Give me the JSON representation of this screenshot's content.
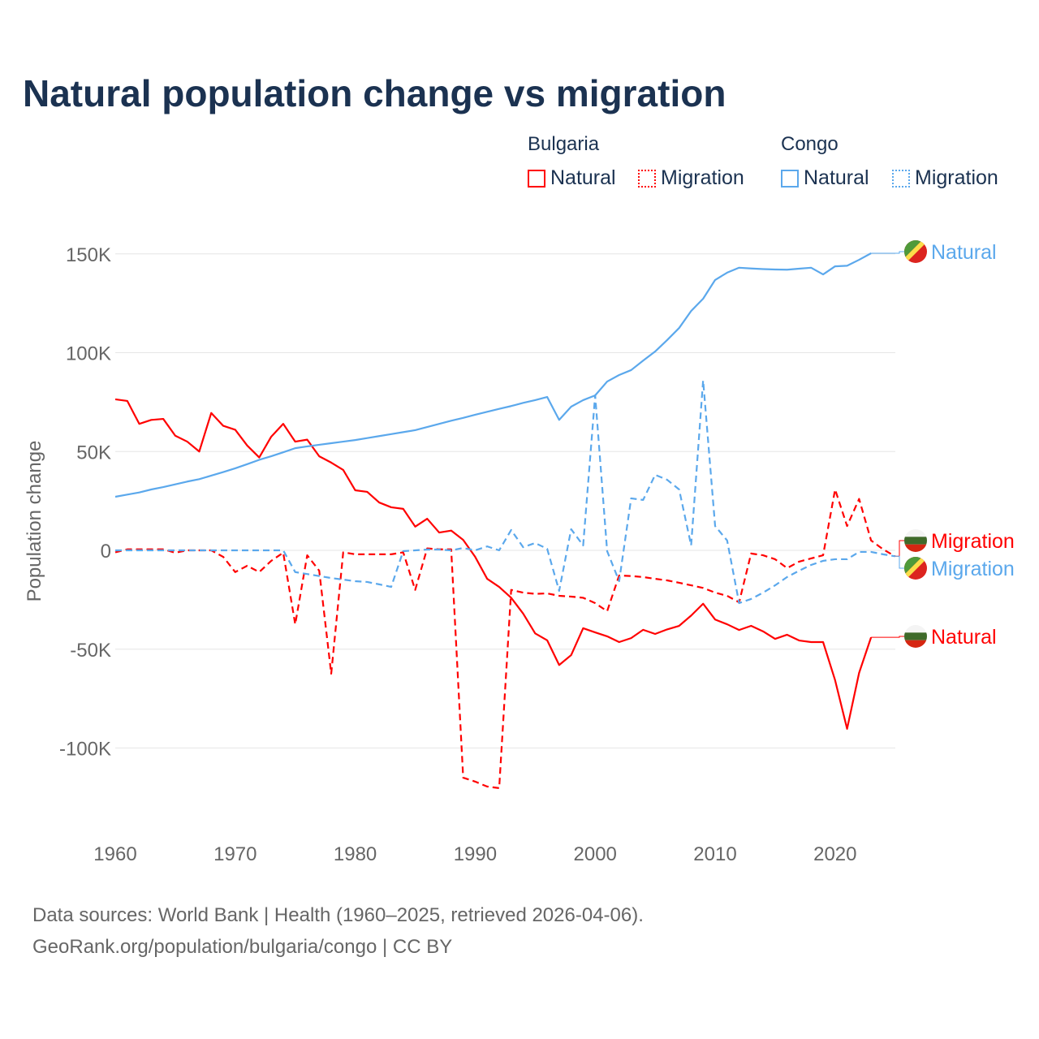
{
  "title": "Natural population change vs migration",
  "legend": {
    "groups": [
      {
        "name": "Bulgaria",
        "color": "#ff0000",
        "items": [
          "Natural",
          "Migration"
        ]
      },
      {
        "name": "Congo",
        "color": "#5ba8ec",
        "items": [
          "Natural",
          "Migration"
        ]
      }
    ]
  },
  "footer": {
    "line1": "Data sources: World Bank | Health (1960–2025, retrieved 2026-04-06).",
    "line2": "GeoRank.org/population/bulgaria/congo | CC BY"
  },
  "chart_data": {
    "type": "line",
    "title": "Natural population change vs migration",
    "xlabel": "",
    "ylabel": "Population change",
    "xlim": [
      1960,
      2025
    ],
    "ylim": [
      -130000,
      165000
    ],
    "x_ticks": [
      1960,
      1970,
      1980,
      1990,
      2000,
      2010,
      2020
    ],
    "x_tick_labels": [
      "1960",
      "1970",
      "1980",
      "1990",
      "2000",
      "2010",
      "2020"
    ],
    "y_ticks": [
      -100000,
      -50000,
      0,
      50000,
      100000,
      150000
    ],
    "y_tick_labels": [
      "-100K",
      "-50K",
      "0",
      "50K",
      "100K",
      "150K"
    ],
    "grid": true,
    "legend_placement": "top-right",
    "series": [
      {
        "name": "Bulgaria Natural",
        "country": "Bulgaria",
        "kind": "Natural",
        "label": "Natural",
        "color": "#ff0000",
        "dash": "solid",
        "flag": "bulgaria",
        "start": 1960,
        "values": [
          76.4,
          75.6,
          64,
          66,
          66.5,
          58,
          55,
          50,
          69.5,
          63,
          61,
          53,
          47,
          57.5,
          64,
          55,
          56,
          47.6,
          44.4,
          40.7,
          30.4,
          29.6,
          24.2,
          21.8,
          21,
          12,
          16,
          9,
          10,
          5.3,
          -3.3,
          -14.4,
          -18.5,
          -24,
          -32,
          -42,
          -45.5,
          -58,
          -53,
          -39.4,
          -41.5,
          -43.5,
          -46.4,
          -44.4,
          -40.2,
          -42.3,
          -40,
          -38.2,
          -33,
          -27,
          -35,
          -37.4,
          -40.3,
          -38.2,
          -41,
          -44.8,
          -42.7,
          -45.6,
          -46.4,
          -46.4,
          -65.7,
          -90.3,
          -62,
          -44
        ]
      },
      {
        "name": "Bulgaria Migration",
        "country": "Bulgaria",
        "kind": "Migration",
        "label": "Migration",
        "color": "#ff0000",
        "dash": "dashed",
        "flag": "bulgaria",
        "start": 1960,
        "values": [
          -1,
          0.5,
          0.5,
          0.5,
          0.5,
          -1.2,
          0,
          0,
          0,
          -3.3,
          -11,
          -7.8,
          -11,
          -5.3,
          -1.2,
          -37.4,
          -2.5,
          -10.3,
          -62.4,
          -1,
          -2,
          -2,
          -2,
          -2,
          -1,
          -20,
          1,
          0.5,
          0.5,
          -115,
          -117,
          -119.5,
          -120.3,
          -20,
          -21.4,
          -22,
          -21.8,
          -23,
          -23.4,
          -24,
          -26.7,
          -30.8,
          -12.7,
          -13,
          -13.5,
          -14.4,
          -15.2,
          -16.4,
          -17.7,
          -19,
          -21.4,
          -23,
          -26.3,
          -1.6,
          -2.5,
          -4.5,
          -9,
          -5.7,
          -4.1,
          -2.5,
          30.8,
          12.3,
          26,
          5,
          0.5,
          -3
        ]
      },
      {
        "name": "Congo Natural",
        "country": "Congo",
        "kind": "Natural",
        "label": "Natural",
        "color": "#5ba8ec",
        "dash": "solid",
        "flag": "congo",
        "start": 1960,
        "values": [
          27.1,
          28.2,
          29.3,
          30.8,
          32,
          33.4,
          34.8,
          36,
          37.8,
          39.6,
          41.5,
          43.6,
          45.8,
          47.6,
          49.6,
          51.7,
          52.6,
          53.4,
          54.2,
          55,
          55.8,
          56.8,
          57.8,
          58.8,
          59.8,
          60.8,
          62.4,
          64,
          65.6,
          67,
          68.6,
          70.1,
          71.6,
          73,
          74.6,
          76,
          77.6,
          66,
          72.7,
          76,
          78.4,
          85.4,
          88.7,
          91.2,
          96,
          100.6,
          106.4,
          112.5,
          121.1,
          127.3,
          136.8,
          140.5,
          143,
          142.6,
          142.3,
          142.1,
          142,
          142.5,
          143,
          139.6,
          143.7,
          144,
          147,
          150.3
        ]
      },
      {
        "name": "Congo Migration",
        "country": "Congo",
        "kind": "Migration",
        "label": "Migration",
        "color": "#5ba8ec",
        "dash": "dashed",
        "flag": "congo",
        "start": 1960,
        "values": [
          0,
          0,
          0,
          0,
          0,
          0,
          0,
          0,
          0,
          0,
          0,
          0,
          0,
          0,
          0,
          -11,
          -12,
          -13,
          -14,
          -14.8,
          -15.6,
          -16,
          -17.2,
          -18.5,
          -0.4,
          0,
          0.4,
          0.4,
          0,
          1.2,
          0,
          2,
          0,
          10.3,
          1.6,
          3.7,
          0.8,
          -20.5,
          10.7,
          2.5,
          78.4,
          -0.4,
          -15.6,
          26.3,
          25.5,
          38.2,
          35.7,
          30.8,
          2.5,
          86,
          12.3,
          5,
          -26.7,
          -24.6,
          -21.4,
          -17.7,
          -13.5,
          -10.3,
          -7.4,
          -5.3,
          -4.5,
          -4.5,
          -0.8,
          -0.8,
          -2,
          -3
        ]
      }
    ],
    "value_unit": "thousands"
  }
}
